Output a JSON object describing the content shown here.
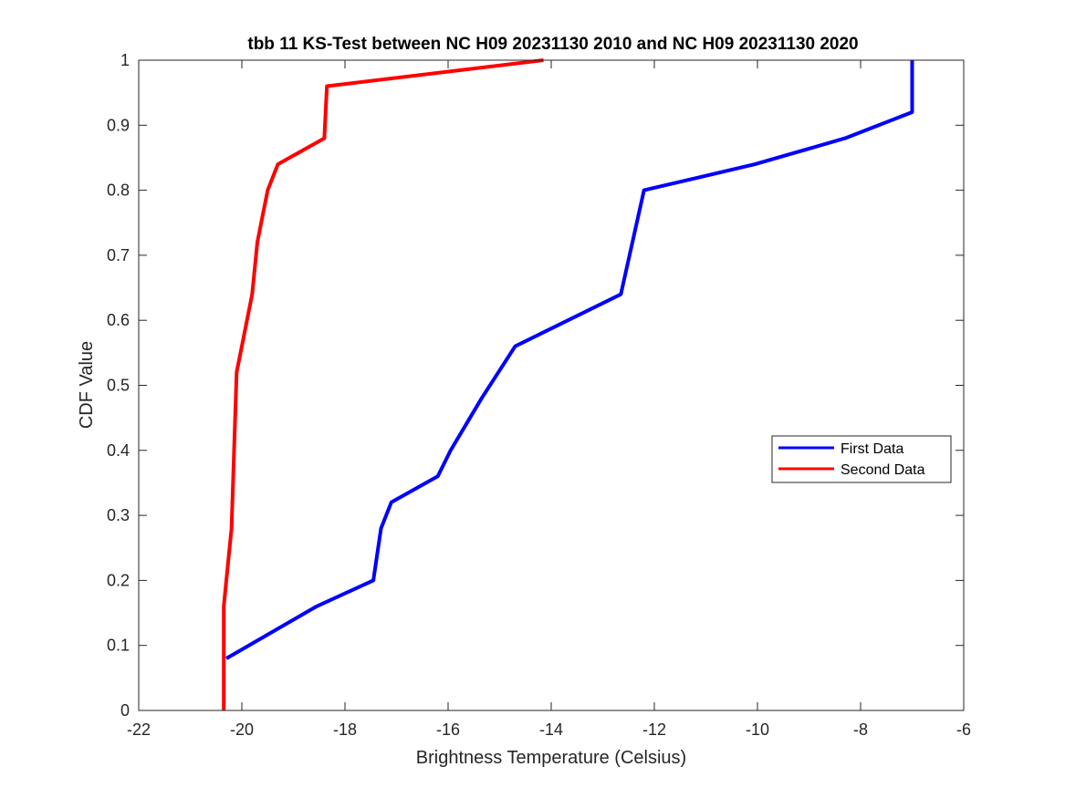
{
  "chart_data": {
    "type": "line",
    "title": "tbb 11 KS-Test between NC H09 20231130 2010 and NC H09 20231130 2020",
    "xlabel": "Brightness Temperature (Celsius)",
    "ylabel": "CDF Value",
    "xlim": [
      -22,
      -6
    ],
    "ylim": [
      0,
      1
    ],
    "xticks": [
      -22,
      -20,
      -18,
      -16,
      -14,
      -12,
      -10,
      -8,
      -6
    ],
    "yticks": [
      0,
      0.1,
      0.2,
      0.3,
      0.4,
      0.5,
      0.6,
      0.7,
      0.8,
      0.9,
      1
    ],
    "xtick_labels": [
      "-22",
      "-20",
      "-18",
      "-16",
      "-14",
      "-12",
      "-10",
      "-8",
      "-6"
    ],
    "ytick_labels": [
      "0",
      "0.1",
      "0.2",
      "0.3",
      "0.4",
      "0.5",
      "0.6",
      "0.7",
      "0.8",
      "0.9",
      "1"
    ],
    "grid": false,
    "legend_position": "right",
    "series": [
      {
        "name": "First Data",
        "color": "#0000ff",
        "x": [
          -20.3,
          -18.55,
          -17.45,
          -17.3,
          -17.1,
          -16.2,
          -15.95,
          -15.35,
          -14.7,
          -12.65,
          -12.2,
          -10.05,
          -8.3,
          -7.0,
          -7.0
        ],
        "y": [
          0.08,
          0.16,
          0.2,
          0.28,
          0.32,
          0.36,
          0.4,
          0.48,
          0.56,
          0.64,
          0.8,
          0.84,
          0.88,
          0.92,
          1.0
        ]
      },
      {
        "name": "Second Data",
        "color": "#ff0000",
        "x": [
          -20.35,
          -20.35,
          -20.3,
          -20.2,
          -20.15,
          -20.1,
          -20.0,
          -19.8,
          -19.7,
          -19.5,
          -19.3,
          -18.4,
          -18.35,
          -14.15
        ],
        "y": [
          0.0,
          0.16,
          0.2,
          0.28,
          0.4,
          0.52,
          0.56,
          0.64,
          0.72,
          0.8,
          0.84,
          0.88,
          0.96,
          1.0
        ]
      }
    ]
  }
}
